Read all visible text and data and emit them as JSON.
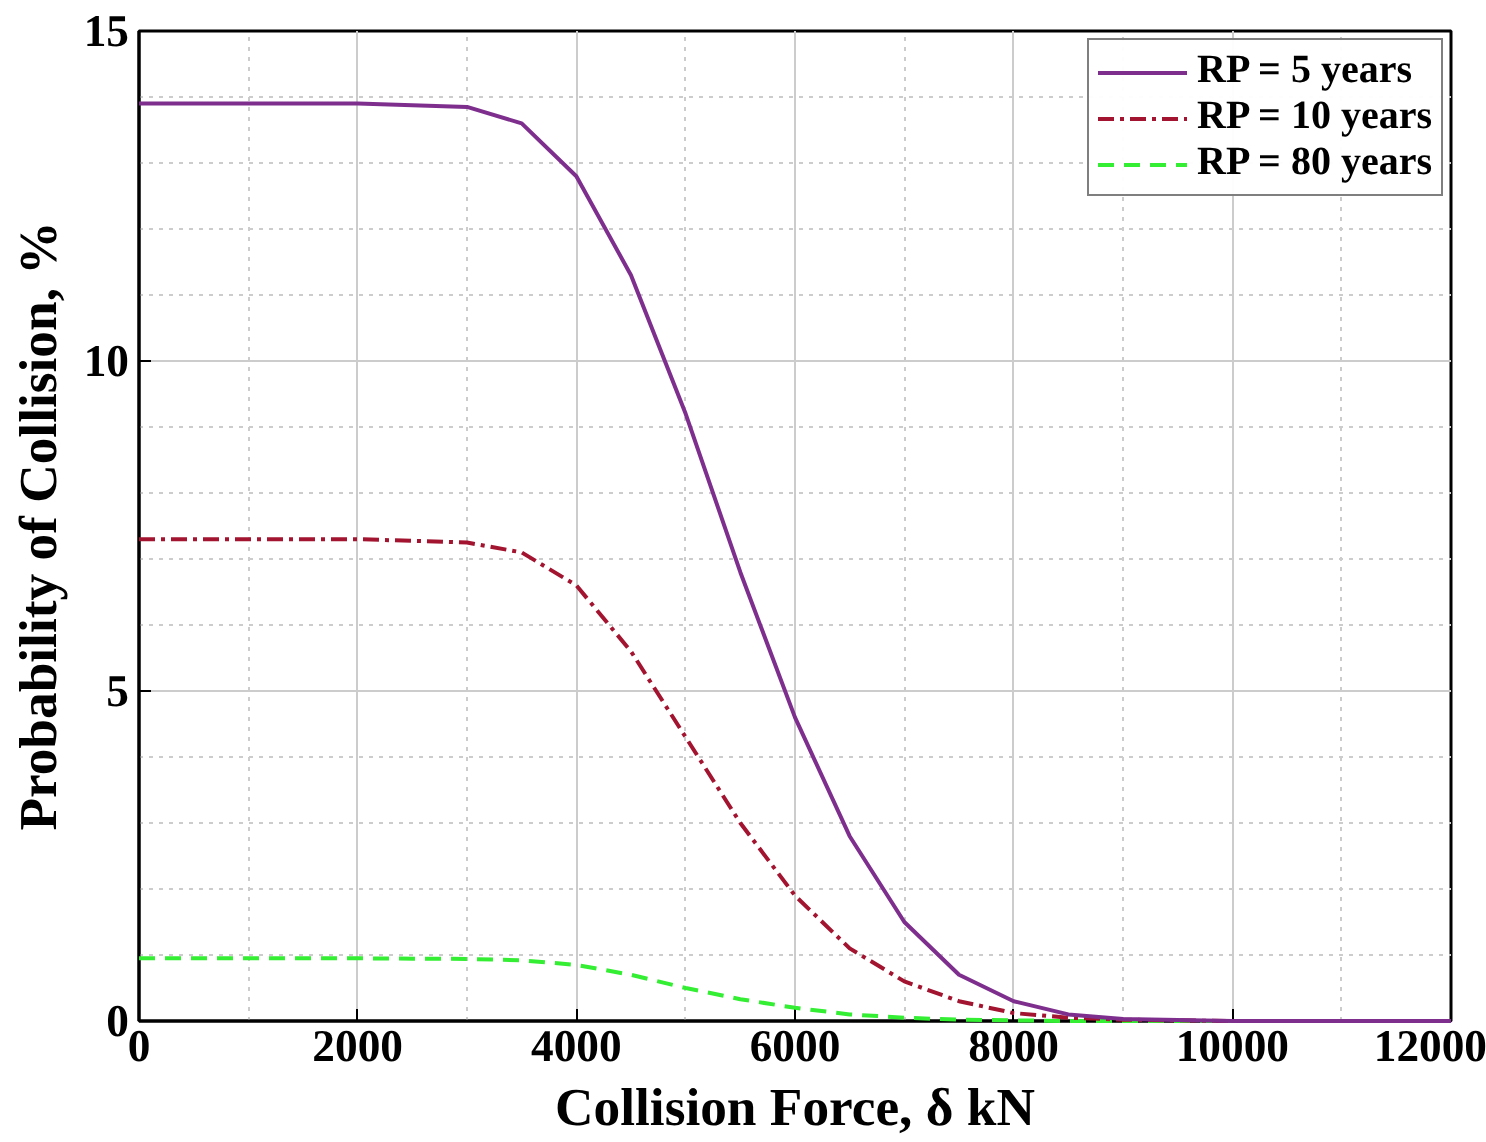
{
  "chart_data": {
    "type": "line",
    "xlabel": "Collision Force, δ kN",
    "ylabel": "Probability of Collision, %",
    "x": [
      0,
      1000,
      2000,
      3000,
      3500,
      4000,
      4500,
      5000,
      5500,
      6000,
      6500,
      7000,
      7500,
      8000,
      8500,
      9000,
      10000,
      11000,
      12000
    ],
    "series": [
      {
        "name": "RP = 5 years",
        "color": "#7e2f8e",
        "line_style": "solid",
        "values": [
          13.9,
          13.9,
          13.9,
          13.85,
          13.6,
          12.8,
          11.3,
          9.2,
          6.8,
          4.6,
          2.8,
          1.5,
          0.7,
          0.3,
          0.1,
          0.03,
          0,
          0,
          0
        ]
      },
      {
        "name": "RP = 10 years",
        "color": "#a2142f",
        "line_style": "dashdot",
        "values": [
          7.3,
          7.3,
          7.3,
          7.25,
          7.1,
          6.6,
          5.6,
          4.3,
          3.0,
          1.9,
          1.1,
          0.6,
          0.3,
          0.12,
          0.05,
          0.02,
          0,
          0,
          0
        ]
      },
      {
        "name": "RP = 80 years",
        "color": "#33ee33",
        "line_style": "dashed",
        "values": [
          0.95,
          0.95,
          0.95,
          0.94,
          0.92,
          0.85,
          0.7,
          0.5,
          0.33,
          0.2,
          0.1,
          0.05,
          0.02,
          0.01,
          0,
          0,
          0,
          0,
          0
        ]
      }
    ],
    "xlim": [
      0,
      12000
    ],
    "ylim": [
      0,
      15
    ],
    "xticks": [
      0,
      2000,
      4000,
      6000,
      8000,
      10000,
      12000
    ],
    "yticks": [
      0,
      5,
      10,
      15
    ],
    "grid": true,
    "legend": "top right"
  }
}
